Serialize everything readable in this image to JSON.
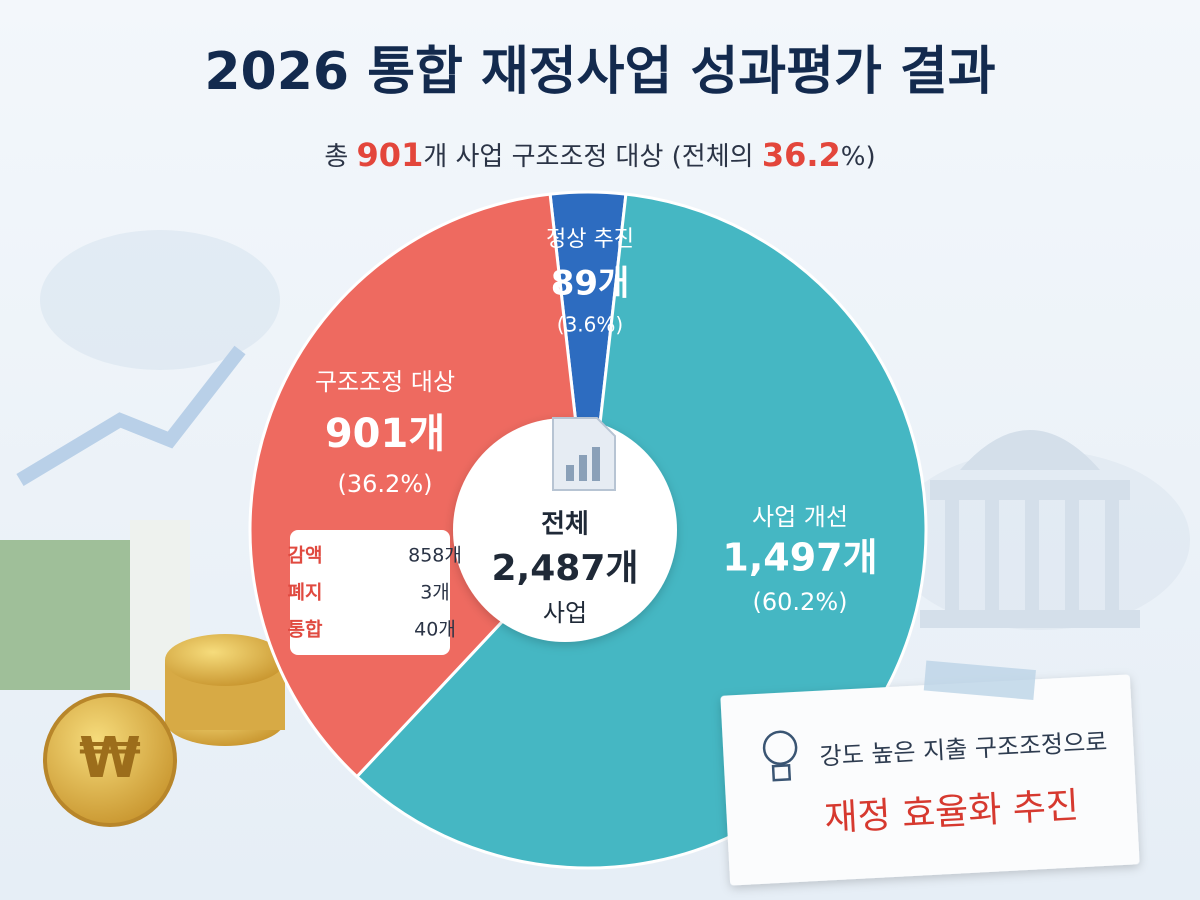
{
  "chart_data": {
    "type": "pie",
    "title": "2026 통합 재정사업 성과평가 결과",
    "subtitle_parts": [
      "총 ",
      "901",
      "개 사업 구조조정 대상 (전체의 ",
      "36.2",
      "%)"
    ],
    "categories": [
      "정상 추진",
      "사업 개선",
      "구조조정 대상"
    ],
    "values": [
      89,
      1497,
      901
    ],
    "value_labels": [
      "89개",
      "1,497개",
      "901개"
    ],
    "percent_labels": [
      "(3.6%)",
      "(60.2%)",
      "(36.2%)"
    ],
    "colors": [
      "#2d6cc0",
      "#45b7c3",
      "#ee6a60"
    ],
    "center": {
      "label": "전체",
      "value_label": "2,487개",
      "unit": "사업"
    },
    "breakdown": [
      {
        "name": "감액",
        "value_label": "858개"
      },
      {
        "name": "폐지",
        "value_label": "3개"
      },
      {
        "name": "통합",
        "value_label": "40개"
      }
    ]
  },
  "note": {
    "line1": "강도 높은 지출 구조조정으로",
    "line2": "재정 효율화 추진"
  }
}
